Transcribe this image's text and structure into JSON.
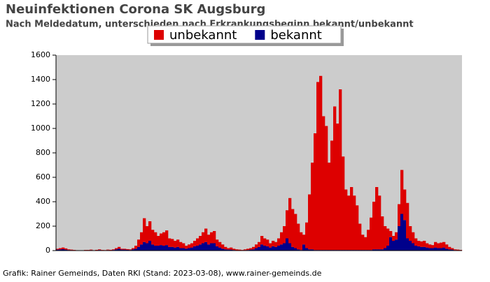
{
  "chart_data": {
    "type": "stacked-bar",
    "title": "Neuinfektionen Corona SK Augsburg",
    "subtitle": "Nach Meldedatum, unterschieden nach Erkrankungsbeginn bekannt/unbekannt",
    "source": "Grafik: Rainer Gemeinds, Daten RKI (Stand: 2023-03-08), www.rainer-gemeinds.de",
    "categories": [
      null,
      null,
      null,
      null,
      null,
      null,
      null,
      null,
      null,
      null,
      null,
      null,
      null,
      null,
      null,
      null,
      null,
      null,
      null,
      null,
      null,
      null,
      null,
      null,
      null,
      null,
      null,
      null,
      null,
      null,
      null,
      null,
      null,
      null,
      null,
      null,
      null,
      null,
      null,
      null,
      null,
      null,
      null,
      null,
      null,
      null,
      null,
      null,
      null,
      null,
      null,
      null,
      null,
      null,
      null,
      null,
      null,
      null,
      null,
      null,
      null,
      null,
      null,
      null,
      null,
      null,
      null,
      null,
      null,
      null,
      null,
      null,
      null,
      null,
      null,
      null,
      null,
      null,
      null,
      null,
      null,
      null,
      null,
      null,
      null,
      null,
      null,
      null,
      null,
      null,
      null,
      null,
      null,
      null,
      null,
      null,
      null,
      null,
      null,
      null,
      null,
      null,
      null,
      null,
      null,
      null,
      null,
      null,
      null,
      null,
      null,
      null,
      null,
      null,
      null,
      null,
      null,
      null,
      null,
      null,
      null,
      null,
      null,
      null,
      null,
      null,
      null,
      null,
      null,
      null,
      null,
      null,
      null,
      null,
      null,
      null,
      null,
      null,
      null,
      null,
      null,
      null,
      null,
      null,
      null
    ],
    "series": [
      {
        "name": "bekannt",
        "color": "#00008b",
        "values": [
          8,
          10,
          12,
          8,
          5,
          4,
          2,
          1,
          1,
          1,
          2,
          2,
          4,
          1,
          3,
          5,
          2,
          2,
          4,
          3,
          5,
          10,
          15,
          8,
          8,
          6,
          5,
          10,
          15,
          30,
          50,
          70,
          60,
          80,
          50,
          40,
          40,
          45,
          40,
          45,
          30,
          30,
          25,
          30,
          20,
          20,
          15,
          20,
          25,
          35,
          40,
          50,
          60,
          70,
          50,
          60,
          60,
          35,
          25,
          15,
          10,
          8,
          8,
          5,
          3,
          3,
          2,
          4,
          5,
          8,
          10,
          20,
          30,
          50,
          40,
          35,
          25,
          35,
          30,
          40,
          50,
          60,
          100,
          60,
          30,
          20,
          10,
          5,
          50,
          20,
          10,
          10,
          5,
          5,
          5,
          5,
          5,
          5,
          5,
          5,
          5,
          5,
          5,
          5,
          5,
          5,
          5,
          5,
          5,
          5,
          5,
          5,
          5,
          10,
          10,
          10,
          10,
          20,
          40,
          110,
          80,
          90,
          200,
          300,
          250,
          100,
          80,
          60,
          40,
          35,
          30,
          30,
          25,
          20,
          20,
          25,
          20,
          20,
          25,
          15,
          10,
          8,
          4,
          3,
          2
        ]
      },
      {
        "name": "unbekannt",
        "color": "#dd0000",
        "values": [
          7,
          10,
          13,
          10,
          5,
          4,
          3,
          2,
          1,
          1,
          3,
          3,
          4,
          2,
          3,
          5,
          3,
          2,
          4,
          3,
          5,
          10,
          15,
          7,
          7,
          6,
          5,
          10,
          25,
          60,
          100,
          195,
          140,
          160,
          120,
          110,
          80,
          95,
          110,
          120,
          70,
          65,
          55,
          60,
          50,
          40,
          25,
          30,
          35,
          45,
          60,
          70,
          90,
          110,
          80,
          90,
          100,
          55,
          45,
          35,
          20,
          12,
          17,
          10,
          7,
          5,
          3,
          6,
          10,
          12,
          20,
          30,
          40,
          70,
          60,
          55,
          35,
          45,
          40,
          60,
          100,
          140,
          230,
          370,
          310,
          280,
          210,
          145,
          80,
          210,
          450,
          710,
          955,
          1375,
          1425,
          1095,
          1015,
          715,
          895,
          1175,
          1035,
          1315,
          765,
          495,
          445,
          515,
          445,
          365,
          215,
          125,
          105,
          165,
          265,
          390,
          510,
          440,
          270,
          180,
          140,
          50,
          40,
          60,
          180,
          360,
          250,
          290,
          120,
          90,
          60,
          45,
          45,
          50,
          35,
          30,
          25,
          45,
          40,
          45,
          45,
          35,
          20,
          12,
          6,
          5,
          3
        ]
      }
    ],
    "legend_order": [
      1,
      0
    ],
    "ylim": [
      0,
      1600
    ],
    "yticks": [
      0,
      200,
      400,
      600,
      800,
      1000,
      1200,
      1400,
      1600
    ]
  }
}
